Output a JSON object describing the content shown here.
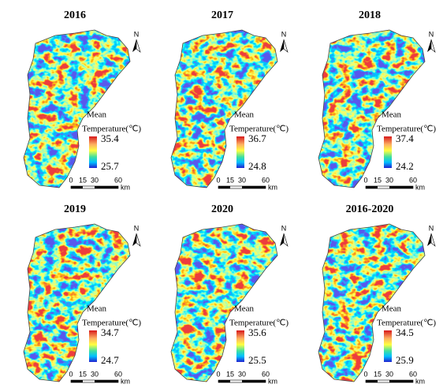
{
  "panels": [
    {
      "title": "2016",
      "max": 35.4,
      "min": 25.7
    },
    {
      "title": "2017",
      "max": 36.7,
      "min": 24.8
    },
    {
      "title": "2018",
      "max": 37.4,
      "min": 24.2
    },
    {
      "title": "2019",
      "max": 34.7,
      "min": 24.7
    },
    {
      "title": "2020",
      "max": 35.6,
      "min": 25.5
    },
    {
      "title": "2016-2020",
      "max": 34.5,
      "min": 25.9
    }
  ],
  "legend": {
    "label": "Mean",
    "title": "Temperature(℃)"
  },
  "north": "N",
  "scale": {
    "ticks": [
      "0",
      "15",
      "30",
      "60"
    ],
    "unit": "km"
  }
}
